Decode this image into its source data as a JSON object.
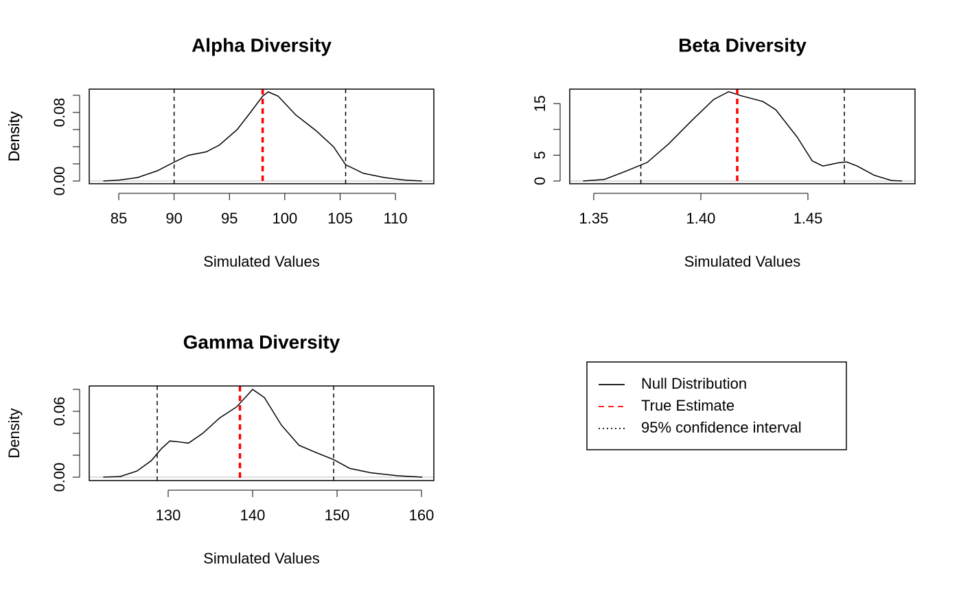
{
  "chart_data": [
    {
      "type": "density",
      "title": "Alpha Diversity",
      "xlabel": "Simulated Values",
      "ylabel": "Density",
      "x": [
        83.6,
        85,
        86.7,
        88.5,
        90,
        91.3,
        92.9,
        94.1,
        95.7,
        96.9,
        98,
        98.5,
        99.4,
        101,
        102.8,
        104.4,
        105.5,
        107.1,
        109,
        110.9,
        112.4
      ],
      "values": [
        0,
        0.001,
        0.004,
        0.012,
        0.022,
        0.03,
        0.034,
        0.042,
        0.06,
        0.08,
        0.099,
        0.104,
        0.099,
        0.077,
        0.059,
        0.04,
        0.019,
        0.009,
        0.004,
        0.001,
        0
      ],
      "true_estimate": 98.0,
      "ci": [
        90.0,
        105.5
      ],
      "xlim": [
        82.33,
        113.47
      ],
      "ylim": [
        -0.0032,
        0.1072
      ],
      "xticks": [
        85,
        90,
        95,
        100,
        105,
        110
      ],
      "yticks": [
        {
          "value": 0,
          "label": "0.00"
        },
        {
          "value": 0.02,
          "label": null
        },
        {
          "value": 0.04,
          "label": null
        },
        {
          "value": 0.06,
          "label": null
        },
        0.08,
        {
          "value": 0.1,
          "label": null
        }
      ]
    },
    {
      "type": "density",
      "title": "Beta Diversity",
      "xlabel": "Simulated Values",
      "ylabel": "Density",
      "x": [
        1.345,
        1.355,
        1.365,
        1.375,
        1.385,
        1.396,
        1.406,
        1.413,
        1.419,
        1.429,
        1.435,
        1.445,
        1.452,
        1.457,
        1.464,
        1.468,
        1.473,
        1.481,
        1.489,
        1.494
      ],
      "values": [
        0,
        0.3,
        1.9,
        3.6,
        7.2,
        11.8,
        15.8,
        17.3,
        16.5,
        15.4,
        13.8,
        8.5,
        3.9,
        2.9,
        3.5,
        3.7,
        2.9,
        1.1,
        0.1,
        0
      ],
      "true_estimate": 1.417,
      "ci": [
        1.372,
        1.467
      ],
      "xlim": [
        1.3388,
        1.5
      ],
      "ylim": [
        -0.53,
        17.8
      ],
      "xticks": [
        1.35,
        {
          "value": 1.4,
          "label": "1.40"
        },
        1.45
      ],
      "yticks": [
        0,
        5,
        {
          "value": 10,
          "label": null
        },
        15
      ]
    },
    {
      "type": "density",
      "title": "Gamma Diversity",
      "xlabel": "Simulated Values",
      "ylabel": "Density",
      "x": [
        122.3,
        124.3,
        126.3,
        128,
        129.2,
        130.2,
        131.4,
        132.4,
        134.1,
        136.1,
        138.1,
        140,
        141.4,
        143.4,
        145.5,
        147.5,
        149.6,
        151.5,
        154,
        157.2,
        160.1
      ],
      "values": [
        0,
        0.0006,
        0.0056,
        0.015,
        0.026,
        0.033,
        0.032,
        0.031,
        0.04,
        0.054,
        0.064,
        0.08,
        0.0725,
        0.0475,
        0.029,
        0.0225,
        0.016,
        0.008,
        0.004,
        0.0013,
        0
      ],
      "true_estimate": 138.5,
      "ci": [
        128.7,
        149.6
      ],
      "xlim": [
        120.65,
        161.46
      ],
      "ylim": [
        -0.0031,
        0.0831
      ],
      "xticks": [
        130,
        140,
        150,
        160
      ],
      "yticks": [
        {
          "value": 0,
          "label": "0.00"
        },
        {
          "value": 0.02,
          "label": null
        },
        {
          "value": 0.04,
          "label": null
        },
        0.06,
        {
          "value": 0.08,
          "label": null
        }
      ]
    }
  ],
  "legend": {
    "entries": [
      {
        "name": "Null Distribution",
        "color": "#000000",
        "style": "solid"
      },
      {
        "name": "True Estimate",
        "color": "#ff0000",
        "style": "dashed"
      },
      {
        "name": "95% confidence interval",
        "color": "#000000",
        "style": "dotted"
      }
    ]
  }
}
